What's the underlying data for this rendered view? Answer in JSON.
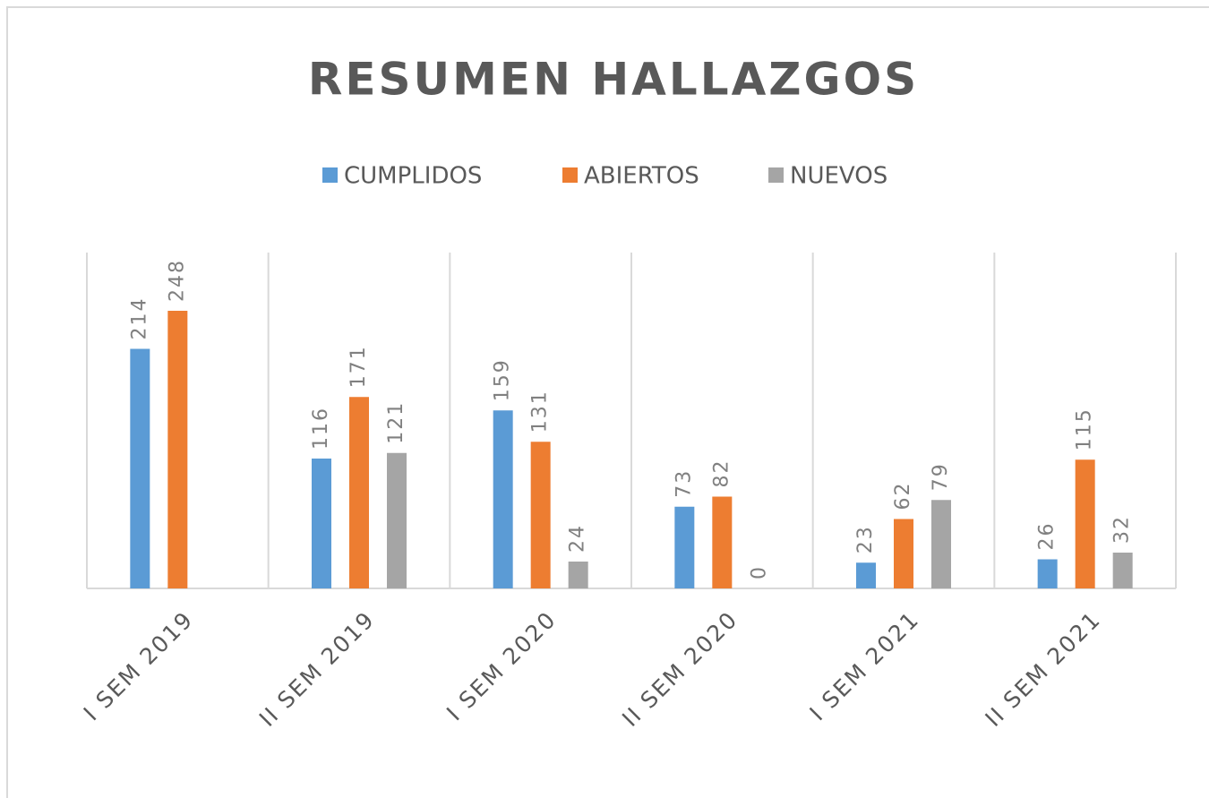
{
  "chart_data": {
    "type": "bar",
    "title": "RESUMEN  HALLAZGOS",
    "categories": [
      "I SEM 2019",
      "II SEM 2019",
      "I SEM 2020",
      "II SEM 2020",
      "I SEM 2021",
      "II SEM 2021"
    ],
    "series": [
      {
        "name": "CUMPLIDOS",
        "color": "#5b9bd5",
        "values": [
          214,
          116,
          159,
          73,
          23,
          26
        ]
      },
      {
        "name": "ABIERTOS",
        "color": "#ed7d31",
        "values": [
          248,
          171,
          131,
          82,
          62,
          115
        ]
      },
      {
        "name": "NUEVOS",
        "color": "#a5a5a5",
        "values": [
          null,
          121,
          24,
          0,
          79,
          32
        ]
      }
    ],
    "ylim": [
      0,
      300
    ],
    "legend": "top",
    "grid": "vertical"
  }
}
